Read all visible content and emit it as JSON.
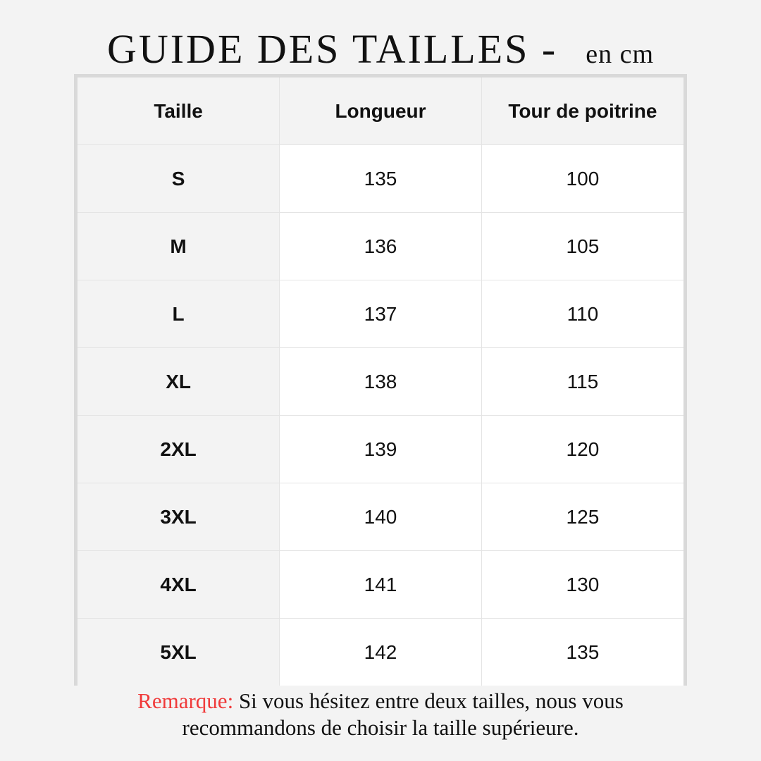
{
  "title": {
    "main": "GUIDE DES TAILLES -",
    "unit": "en cm"
  },
  "table": {
    "headers": [
      "Taille",
      "Longueur",
      "Tour de poitrine"
    ],
    "rows": [
      [
        "S",
        "135",
        "100"
      ],
      [
        "M",
        "136",
        "105"
      ],
      [
        "L",
        "137",
        "110"
      ],
      [
        "XL",
        "138",
        "115"
      ],
      [
        "2XL",
        "139",
        "120"
      ],
      [
        "3XL",
        "140",
        "125"
      ],
      [
        "4XL",
        "141",
        "130"
      ],
      [
        "5XL",
        "142",
        "135"
      ]
    ]
  },
  "note": {
    "label": "Remarque:",
    "line1": " Si vous hésitez entre deux tailles, nous vous",
    "line2": "recommandons de choisir la taille supérieure."
  },
  "colors": {
    "background": "#f3f3f3",
    "border": "#d9d9d9",
    "note_label": "#f03a3a"
  }
}
